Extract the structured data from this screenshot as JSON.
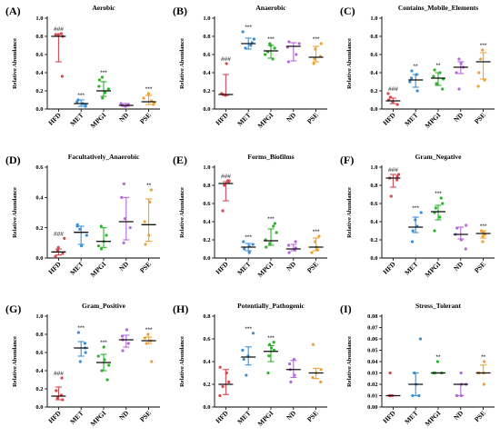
{
  "colors": {
    "HFD": "#d9474f",
    "MET": "#3b8fd9",
    "MPGI": "#2ab52a",
    "ND": "#b469d6",
    "PSE": "#f0a030"
  },
  "chart_data": [
    {
      "letter": "(A)",
      "title": "Aerobic",
      "ylabel": "Relative Abundance",
      "ylim": [
        0,
        1.0
      ],
      "ticks": [
        0.0,
        0.2,
        0.4,
        0.6,
        0.8,
        1.0
      ],
      "tick_labels": [
        "0.0",
        "0.2",
        "0.4",
        "0.6",
        "0.8",
        "1.0"
      ],
      "categories": [
        "HFD",
        "MET",
        "MPGI",
        "ND",
        "PSE"
      ],
      "medians": [
        0.8,
        0.06,
        0.2,
        0.04,
        0.08
      ],
      "lower": [
        0.52,
        0.03,
        0.14,
        0.03,
        0.05
      ],
      "upper": [
        0.82,
        0.1,
        0.3,
        0.06,
        0.15
      ],
      "points": [
        [
          0.36,
          0.8,
          0.83,
          0.82,
          0.82
        ],
        [
          0.03,
          0.05,
          0.08,
          0.1,
          0.06
        ],
        [
          0.12,
          0.18,
          0.22,
          0.25,
          0.32,
          0.35
        ],
        [
          0.03,
          0.04,
          0.05,
          0.06,
          0.04
        ],
        [
          0.05,
          0.07,
          0.09,
          0.12,
          0.17
        ]
      ],
      "significance": [
        "###",
        "***",
        "***",
        "",
        "***"
      ]
    },
    {
      "letter": "(B)",
      "title": "Anaerobic",
      "ylabel": "Relative Abundance",
      "ylim": [
        0,
        1.0
      ],
      "ticks": [
        0.0,
        0.2,
        0.4,
        0.6,
        0.8,
        1.0
      ],
      "tick_labels": [
        "0.0",
        "0.2",
        "0.4",
        "0.6",
        "0.8",
        "1.0"
      ],
      "categories": [
        "HFD",
        "MET",
        "MPGI",
        "ND",
        "PSE"
      ],
      "medians": [
        0.16,
        0.72,
        0.64,
        0.69,
        0.57
      ],
      "lower": [
        0.15,
        0.66,
        0.56,
        0.53,
        0.52
      ],
      "upper": [
        0.38,
        0.78,
        0.7,
        0.73,
        0.69
      ],
      "points": [
        [
          0.15,
          0.16,
          0.17,
          0.5
        ],
        [
          0.67,
          0.7,
          0.73,
          0.77,
          0.85
        ],
        [
          0.55,
          0.6,
          0.63,
          0.67,
          0.7,
          0.72
        ],
        [
          0.52,
          0.6,
          0.68,
          0.72,
          0.74
        ],
        [
          0.5,
          0.55,
          0.58,
          0.66,
          0.72
        ]
      ],
      "significance": [
        "###",
        "***",
        "***",
        "",
        "***"
      ]
    },
    {
      "letter": "(C)",
      "title": "Contains_Mobile_Elements",
      "ylabel": "Relative Abundance",
      "ylim": [
        0,
        1.0
      ],
      "ticks": [
        0.0,
        0.2,
        0.4,
        0.6,
        0.8,
        1.0
      ],
      "tick_labels": [
        "0.0",
        "0.2",
        "0.4",
        "0.6",
        "0.8",
        "1.0"
      ],
      "categories": [
        "HFD",
        "MET",
        "MPGI",
        "ND",
        "PSE"
      ],
      "medians": [
        0.09,
        0.32,
        0.34,
        0.46,
        0.52
      ],
      "lower": [
        0.06,
        0.24,
        0.26,
        0.39,
        0.33
      ],
      "upper": [
        0.12,
        0.38,
        0.4,
        0.52,
        0.62
      ],
      "points": [
        [
          0.05,
          0.08,
          0.1,
          0.13,
          0.17
        ],
        [
          0.2,
          0.3,
          0.34,
          0.38,
          0.42
        ],
        [
          0.22,
          0.28,
          0.33,
          0.36,
          0.4,
          0.43
        ],
        [
          0.22,
          0.4,
          0.46,
          0.5,
          0.55
        ],
        [
          0.25,
          0.32,
          0.4,
          0.55,
          0.65
        ]
      ],
      "significance": [
        "###",
        "**",
        "**",
        "",
        "***"
      ]
    },
    {
      "letter": "(D)",
      "title": "Facultatively_Anaerobic",
      "ylabel": "Relative Abundance",
      "ylim": [
        0,
        0.6
      ],
      "ticks": [
        0.0,
        0.2,
        0.4,
        0.6
      ],
      "tick_labels": [
        "0.0",
        "0.2",
        "0.4",
        "0.6"
      ],
      "categories": [
        "HFD",
        "MET",
        "MPGI",
        "ND",
        "PSE"
      ],
      "medians": [
        0.04,
        0.17,
        0.11,
        0.24,
        0.22
      ],
      "lower": [
        0.02,
        0.09,
        0.07,
        0.12,
        0.11
      ],
      "upper": [
        0.06,
        0.21,
        0.2,
        0.4,
        0.39
      ],
      "points": [
        [
          0.01,
          0.03,
          0.05,
          0.07,
          0.13
        ],
        [
          0.08,
          0.15,
          0.19,
          0.21,
          0.22
        ],
        [
          0.06,
          0.08,
          0.11,
          0.15,
          0.21
        ],
        [
          0.1,
          0.2,
          0.26,
          0.4,
          0.49
        ],
        [
          0.09,
          0.15,
          0.24,
          0.37,
          0.45
        ]
      ],
      "significance": [
        "###",
        "",
        "",
        "",
        "**"
      ]
    },
    {
      "letter": "(E)",
      "title": "Forms_Biofilms",
      "ylabel": "Relative Abundance",
      "ylim": [
        0,
        1.0
      ],
      "ticks": [
        0.0,
        0.2,
        0.4,
        0.6,
        0.8,
        1.0
      ],
      "tick_labels": [
        "0.0",
        "0.2",
        "0.4",
        "0.6",
        "0.8",
        "1.0"
      ],
      "categories": [
        "HFD",
        "MET",
        "MPGI",
        "ND",
        "PSE"
      ],
      "medians": [
        0.82,
        0.12,
        0.19,
        0.1,
        0.12
      ],
      "lower": [
        0.63,
        0.08,
        0.14,
        0.08,
        0.08
      ],
      "upper": [
        0.84,
        0.16,
        0.32,
        0.15,
        0.22
      ],
      "points": [
        [
          0.52,
          0.8,
          0.83,
          0.85,
          0.85
        ],
        [
          0.06,
          0.1,
          0.13,
          0.15,
          0.18
        ],
        [
          0.12,
          0.16,
          0.2,
          0.28,
          0.35,
          0.38
        ],
        [
          0.06,
          0.09,
          0.11,
          0.14,
          0.18
        ],
        [
          0.06,
          0.09,
          0.12,
          0.18,
          0.24
        ]
      ],
      "significance": [
        "###",
        "***",
        "***",
        "",
        "***"
      ]
    },
    {
      "letter": "(F)",
      "title": "Gram_Negative",
      "ylabel": "Relative Abundance",
      "ylim": [
        0,
        1.0
      ],
      "ticks": [
        0.0,
        0.2,
        0.4,
        0.6,
        0.8,
        1.0
      ],
      "tick_labels": [
        "0.0",
        "0.2",
        "0.4",
        "0.6",
        "0.8",
        "1.0"
      ],
      "categories": [
        "HFD",
        "MET",
        "MPGI",
        "ND",
        "PSE"
      ],
      "medians": [
        0.88,
        0.34,
        0.51,
        0.26,
        0.27
      ],
      "lower": [
        0.78,
        0.28,
        0.42,
        0.21,
        0.22
      ],
      "upper": [
        0.92,
        0.45,
        0.58,
        0.34,
        0.3
      ],
      "points": [
        [
          0.68,
          0.86,
          0.88,
          0.9,
          0.92
        ],
        [
          0.18,
          0.3,
          0.35,
          0.42,
          0.5
        ],
        [
          0.3,
          0.45,
          0.5,
          0.55,
          0.6,
          0.66
        ],
        [
          0.1,
          0.2,
          0.26,
          0.33,
          0.36
        ],
        [
          0.18,
          0.24,
          0.26,
          0.28,
          0.3
        ]
      ],
      "significance": [
        "###",
        "***",
        "***",
        "",
        "***"
      ]
    },
    {
      "letter": "(G)",
      "title": "Gram_Positive",
      "ylabel": "Relative Abundance",
      "ylim": [
        0,
        1.0
      ],
      "ticks": [
        0.0,
        0.2,
        0.4,
        0.6,
        0.8,
        1.0
      ],
      "tick_labels": [
        "0.0",
        "0.2",
        "0.4",
        "0.6",
        "0.8",
        "1.0"
      ],
      "categories": [
        "HFD",
        "MET",
        "MPGI",
        "ND",
        "PSE"
      ],
      "medians": [
        0.12,
        0.65,
        0.49,
        0.74,
        0.73
      ],
      "lower": [
        0.08,
        0.56,
        0.4,
        0.66,
        0.7
      ],
      "upper": [
        0.22,
        0.72,
        0.58,
        0.79,
        0.77
      ],
      "points": [
        [
          0.08,
          0.1,
          0.13,
          0.18,
          0.32
        ],
        [
          0.5,
          0.6,
          0.65,
          0.7,
          0.82
        ],
        [
          0.3,
          0.4,
          0.46,
          0.52,
          0.56,
          0.66
        ],
        [
          0.62,
          0.7,
          0.74,
          0.78,
          0.85
        ],
        [
          0.5,
          0.7,
          0.73,
          0.76,
          0.8
        ]
      ],
      "significance": [
        "###",
        "***",
        "***",
        "",
        "***"
      ]
    },
    {
      "letter": "(H)",
      "title": "Potentially_Pathogenic",
      "ylabel": "Relative Abundance",
      "ylim": [
        0,
        0.8
      ],
      "ticks": [
        0.0,
        0.2,
        0.4,
        0.6,
        0.8
      ],
      "tick_labels": [
        "0.0",
        "0.2",
        "0.4",
        "0.6",
        "0.8"
      ],
      "categories": [
        "HFD",
        "MET",
        "MPGI",
        "ND",
        "PSE"
      ],
      "medians": [
        0.2,
        0.44,
        0.49,
        0.33,
        0.3
      ],
      "lower": [
        0.11,
        0.37,
        0.4,
        0.26,
        0.25
      ],
      "upper": [
        0.33,
        0.53,
        0.54,
        0.41,
        0.34
      ],
      "points": [
        [
          0.1,
          0.18,
          0.22,
          0.3,
          0.35
        ],
        [
          0.28,
          0.42,
          0.45,
          0.5,
          0.65
        ],
        [
          0.3,
          0.45,
          0.5,
          0.52,
          0.55,
          0.57
        ],
        [
          0.22,
          0.28,
          0.33,
          0.38,
          0.42
        ],
        [
          0.22,
          0.26,
          0.3,
          0.33,
          0.55
        ]
      ],
      "significance": [
        "",
        "***",
        "***",
        "",
        ""
      ]
    },
    {
      "letter": "(I)",
      "title": "Stress_Tolerant",
      "ylabel": "Relative Abundance",
      "ylim": [
        0,
        0.08
      ],
      "ticks": [
        0.0,
        0.01,
        0.02,
        0.03,
        0.04,
        0.05,
        0.06,
        0.07,
        0.08
      ],
      "tick_labels": [
        "0.00",
        "0.01",
        "0.02",
        "0.03",
        "0.04",
        "0.05",
        "0.06",
        "0.07",
        "0.08"
      ],
      "categories": [
        "HFD",
        "MET",
        "MPGI",
        "ND",
        "PSE"
      ],
      "medians": [
        0.01,
        0.02,
        0.03,
        0.02,
        0.03
      ],
      "lower": [
        0.01,
        0.01,
        0.03,
        0.01,
        0.03
      ],
      "upper": [
        0.01,
        0.03,
        0.03,
        0.02,
        0.037
      ],
      "points": [
        [
          0.01,
          0.01,
          0.01,
          0.01,
          0.03
        ],
        [
          0.01,
          0.01,
          0.02,
          0.03,
          0.06
        ],
        [
          0.03,
          0.03,
          0.03,
          0.03,
          0.03,
          0.04
        ],
        [
          0.01,
          0.01,
          0.02,
          0.02,
          0.03
        ],
        [
          0.02,
          0.03,
          0.03,
          0.03,
          0.04
        ]
      ],
      "significance": [
        "",
        "",
        "**",
        "",
        "**"
      ]
    }
  ]
}
